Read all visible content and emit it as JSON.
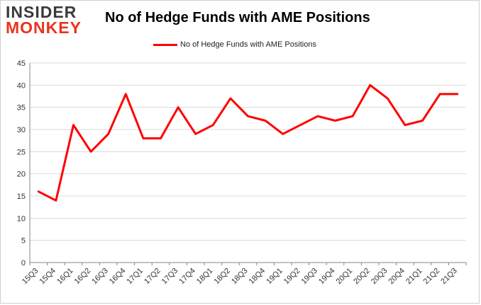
{
  "header": {
    "logo_line1": "INSIDER",
    "logo_line2": "MONKEY",
    "title": "No of Hedge Funds with AME Positions"
  },
  "colors": {
    "series": "#ff0000",
    "logo_dark": "#3a3a3a",
    "logo_accent": "#e8341c",
    "grid": "#d9d9d9"
  },
  "chart_data": {
    "type": "line",
    "title": "No of Hedge Funds with AME Positions",
    "xlabel": "",
    "ylabel": "",
    "ylim": [
      0,
      45
    ],
    "yticks": [
      0,
      5,
      10,
      15,
      20,
      25,
      30,
      35,
      40,
      45
    ],
    "grid": true,
    "legend": "top-center",
    "categories": [
      "15Q3",
      "15Q4",
      "16Q1",
      "16Q2",
      "16Q3",
      "16Q4",
      "17Q1",
      "17Q2",
      "17Q3",
      "17Q4",
      "18Q1",
      "18Q2",
      "18Q3",
      "18Q4",
      "19Q1",
      "19Q2",
      "19Q3",
      "19Q4",
      "20Q1",
      "20Q2",
      "20Q3",
      "20Q4",
      "21Q1",
      "21Q2",
      "21Q3"
    ],
    "series": [
      {
        "name": "No of Hedge Funds with AME Positions",
        "values": [
          16,
          14,
          31,
          25,
          29,
          38,
          28,
          28,
          35,
          29,
          31,
          37,
          33,
          32,
          29,
          31,
          33,
          32,
          33,
          40,
          37,
          31,
          32,
          38,
          38
        ]
      }
    ]
  }
}
